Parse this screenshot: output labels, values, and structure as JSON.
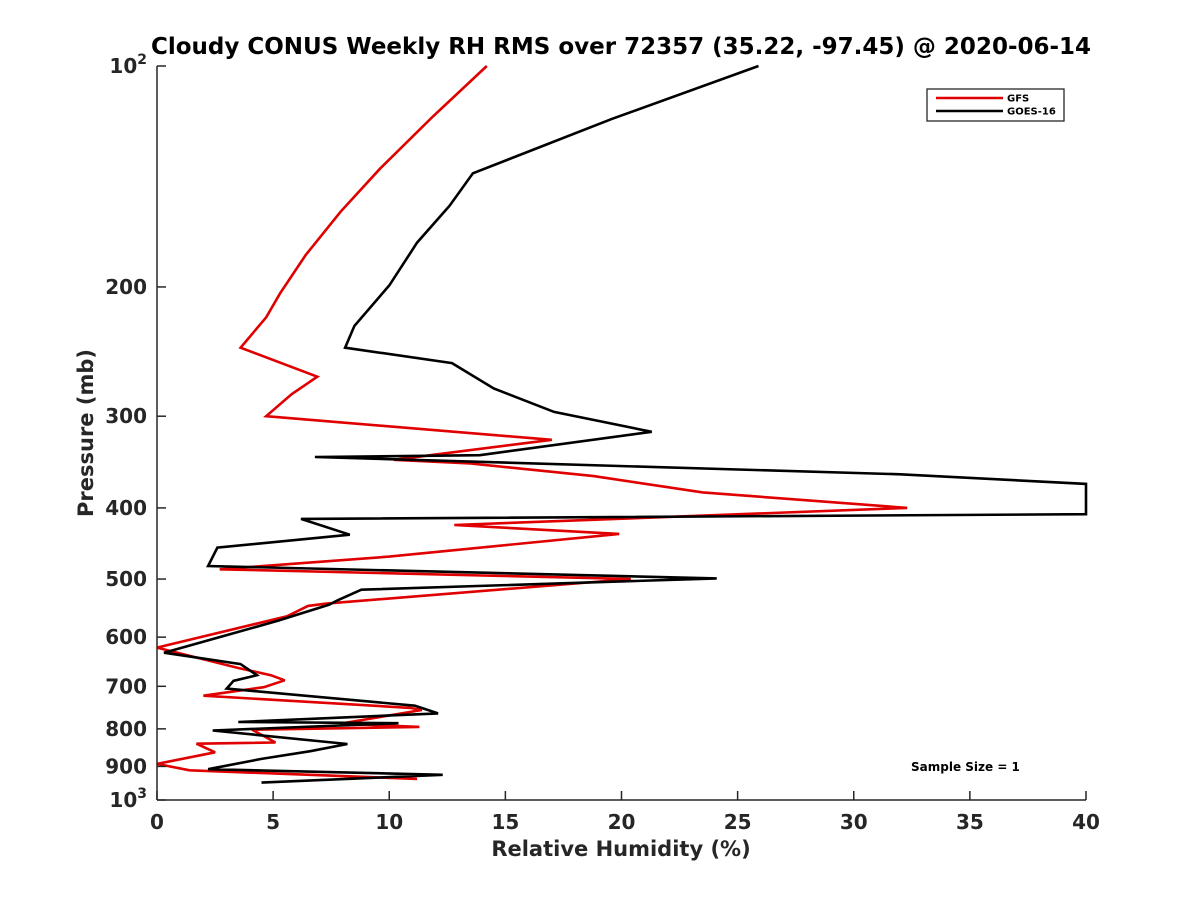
{
  "chart_data": {
    "type": "line",
    "title": "Cloudy CONUS Weekly RH RMS over 72357 (35.22, -97.45) @ 2020-06-14",
    "xlabel": "Relative Humidity (%)",
    "ylabel": "Pressure (mb)",
    "xlim": [
      0,
      40
    ],
    "ylim": [
      100,
      1000
    ],
    "y_scale": "log",
    "y_reversed": true,
    "x_ticks": [
      "0",
      "5",
      "10",
      "15",
      "20",
      "25",
      "30",
      "35",
      "40"
    ],
    "y_ticks": [
      {
        "value": 100,
        "base": "10",
        "exp": "2"
      },
      {
        "value": 200,
        "label": "200"
      },
      {
        "value": 300,
        "label": "300"
      },
      {
        "value": 400,
        "label": "400"
      },
      {
        "value": 500,
        "label": "500"
      },
      {
        "value": 600,
        "label": "600"
      },
      {
        "value": 700,
        "label": "700"
      },
      {
        "value": 800,
        "label": "800"
      },
      {
        "value": 900,
        "label": "900"
      },
      {
        "value": 1000,
        "base": "10",
        "exp": "3"
      }
    ],
    "legend": {
      "placement": "top-right",
      "entries": [
        "GFS",
        "GOES-16"
      ]
    },
    "annotation": "Sample Size = 1",
    "series": [
      {
        "name": "GFS",
        "color": "#e00000",
        "x": [
          14.2,
          11.9,
          9.6,
          7.9,
          6.4,
          5.3,
          4.7,
          3.6,
          6.9,
          5.8,
          4.7,
          17.0,
          10.2,
          13.5,
          18.8,
          23.5,
          32.3,
          12.8,
          19.9,
          10.0,
          2.7,
          20.4,
          7.3,
          6.5,
          5.6,
          0.0,
          3.5,
          4.9,
          5.5,
          4.6,
          2.0,
          10.9,
          11.4,
          7.9,
          11.3,
          4.1,
          5.1,
          1.7,
          2.5,
          0.0,
          1.4,
          4.6,
          11.2
        ],
        "y": [
          100,
          117,
          138,
          158,
          181,
          204,
          220,
          242,
          265,
          280,
          300,
          323,
          344,
          348,
          362,
          381,
          400,
          422,
          434,
          466,
          485,
          500,
          540,
          544,
          562,
          620,
          661,
          676,
          687,
          702,
          721,
          749,
          754,
          787,
          795,
          802,
          835,
          838,
          861,
          893,
          911,
          919,
          936
        ]
      },
      {
        "name": "GOES-16",
        "color": "#000000",
        "x": [
          25.9,
          19.6,
          13.6,
          12.6,
          11.2,
          10.0,
          8.5,
          8.1,
          12.7,
          14.5,
          17.1,
          21.3,
          13.9,
          6.8,
          32.0,
          40.0,
          40.0,
          6.2,
          8.3,
          2.6,
          2.2,
          24.1,
          8.8,
          7.8,
          7.4,
          5.2,
          0.3,
          3.6,
          4.3,
          3.3,
          3.0,
          11.1,
          12.1,
          3.5,
          10.4,
          2.4,
          8.2,
          6.6,
          4.5,
          2.2,
          12.3,
          4.5
        ],
        "y": [
          100,
          118,
          140,
          155,
          174,
          199,
          226,
          242,
          254,
          275,
          296,
          315,
          339,
          341,
          360,
          371,
          408,
          414,
          435,
          453,
          480,
          499,
          517,
          534,
          542,
          570,
          630,
          653,
          676,
          688,
          705,
          744,
          762,
          783,
          786,
          804,
          839,
          858,
          879,
          908,
          924,
          947
        ]
      }
    ]
  }
}
